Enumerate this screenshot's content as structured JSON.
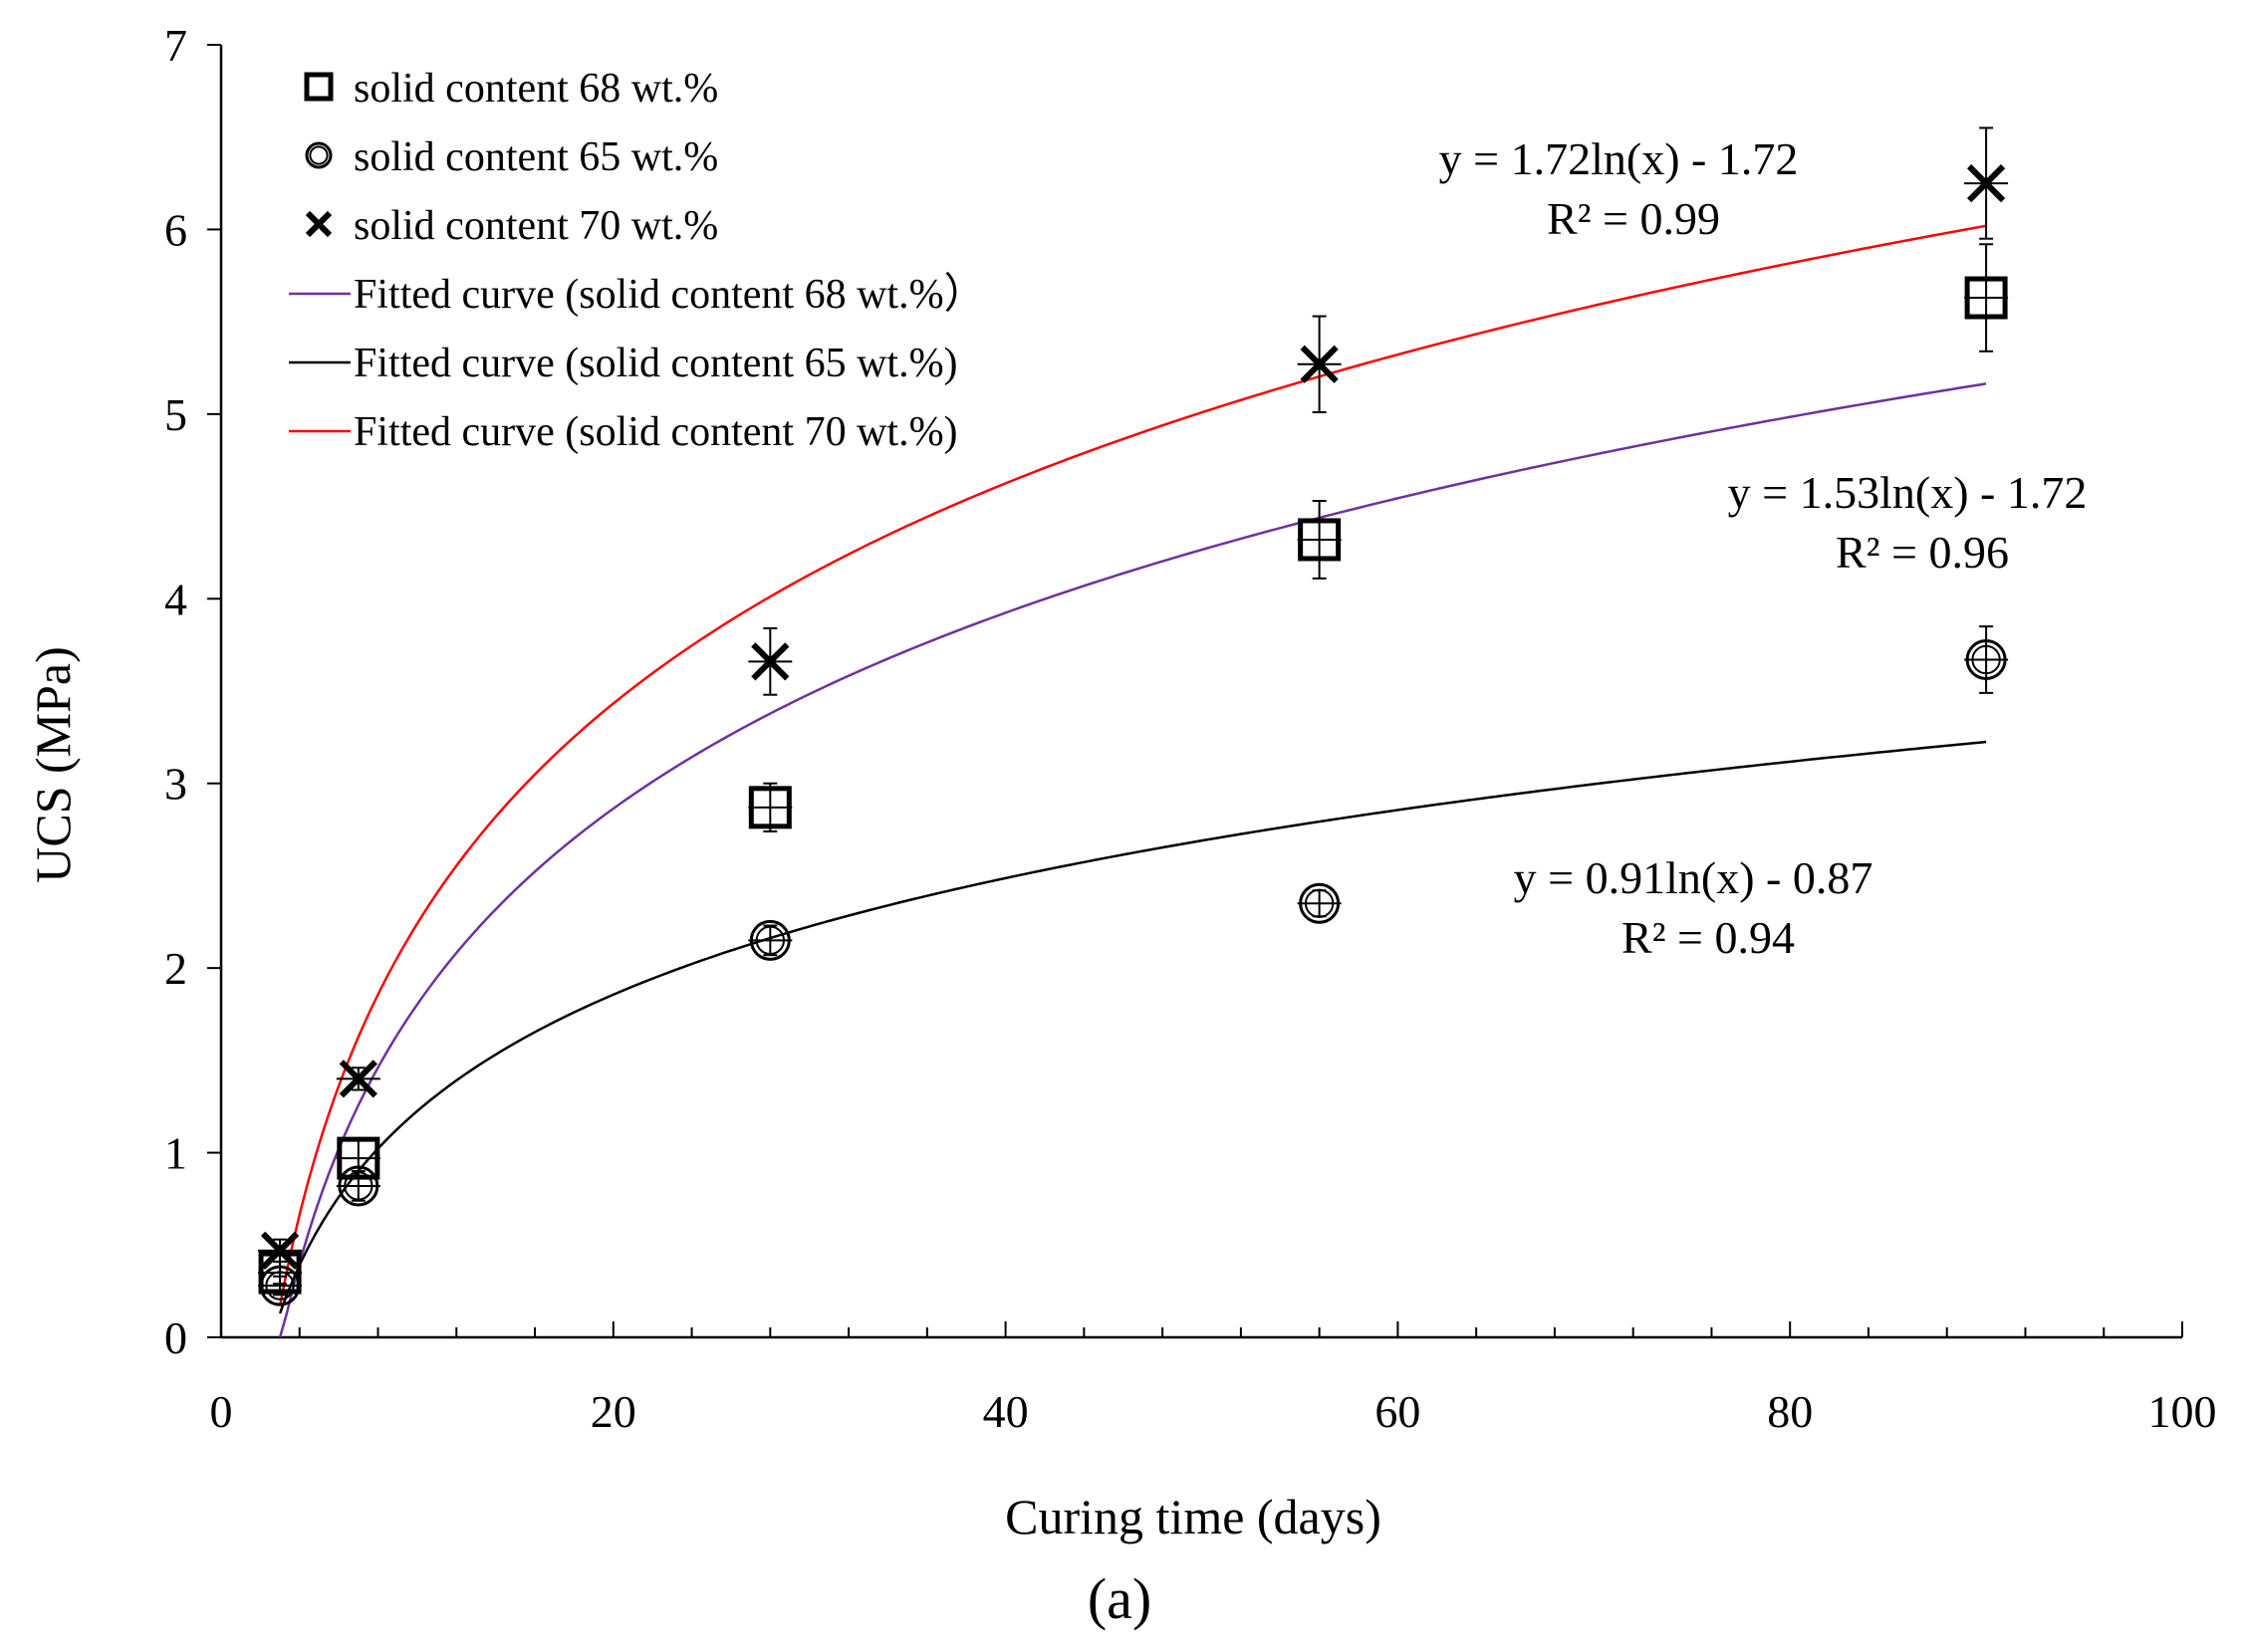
{
  "chart_data": {
    "type": "scatter",
    "xlabel": "Curing time (days)",
    "ylabel": "UCS (MPa)",
    "xlim": [
      0,
      100
    ],
    "ylim": [
      0,
      7
    ],
    "x_ticks": [
      "0",
      "20",
      "40",
      "60",
      "80",
      "100"
    ],
    "y_ticks": [
      "0",
      "1",
      "2",
      "3",
      "4",
      "5",
      "6",
      "7"
    ],
    "grid": false,
    "legend_position": "top-left",
    "panel_label": "(a)",
    "series": [
      {
        "name": "solid content 68 wt.%",
        "marker": "square",
        "color": "#000000",
        "x": [
          3,
          7,
          28,
          56,
          90
        ],
        "y": [
          0.35,
          0.97,
          2.87,
          4.32,
          5.63
        ],
        "err": [
          0.06,
          0.1,
          0.13,
          0.21,
          0.29
        ]
      },
      {
        "name": "solid content 65 wt.%",
        "marker": "circle",
        "color": "#000000",
        "x": [
          3,
          7,
          28,
          56,
          90
        ],
        "y": [
          0.28,
          0.82,
          2.15,
          2.35,
          3.67
        ],
        "err": [
          0.05,
          0.08,
          0.08,
          0.07,
          0.18
        ]
      },
      {
        "name": "solid content 70 wt.%",
        "marker": "cross",
        "color": "#000000",
        "x": [
          3,
          7,
          28,
          56,
          90
        ],
        "y": [
          0.47,
          1.4,
          3.66,
          5.27,
          6.25
        ],
        "err": [
          0.06,
          0.06,
          0.18,
          0.26,
          0.3
        ]
      }
    ],
    "fits": [
      {
        "name": "Fitted curve (solid content 68 wt.%）",
        "color": "#7030A0",
        "a": 1.53,
        "b": -1.72,
        "x_range": [
          3,
          90
        ],
        "equation": "y = 1.53ln(x) - 1.72",
        "r2": "R² = 0.96"
      },
      {
        "name": "Fitted curve (solid content 65 wt.%)",
        "color": "#000000",
        "a": 0.91,
        "b": -0.87,
        "x_range": [
          3,
          90
        ],
        "equation": "y = 0.91ln(x) - 0.87",
        "r2": "R² = 0.94"
      },
      {
        "name": "Fitted curve (solid content 70 wt.%)",
        "color": "#FF0000",
        "a": 1.72,
        "b": -1.72,
        "x_range": [
          3,
          90
        ],
        "equation": "y = 1.72ln(x) - 1.72",
        "r2": "R² = 0.99"
      }
    ]
  }
}
